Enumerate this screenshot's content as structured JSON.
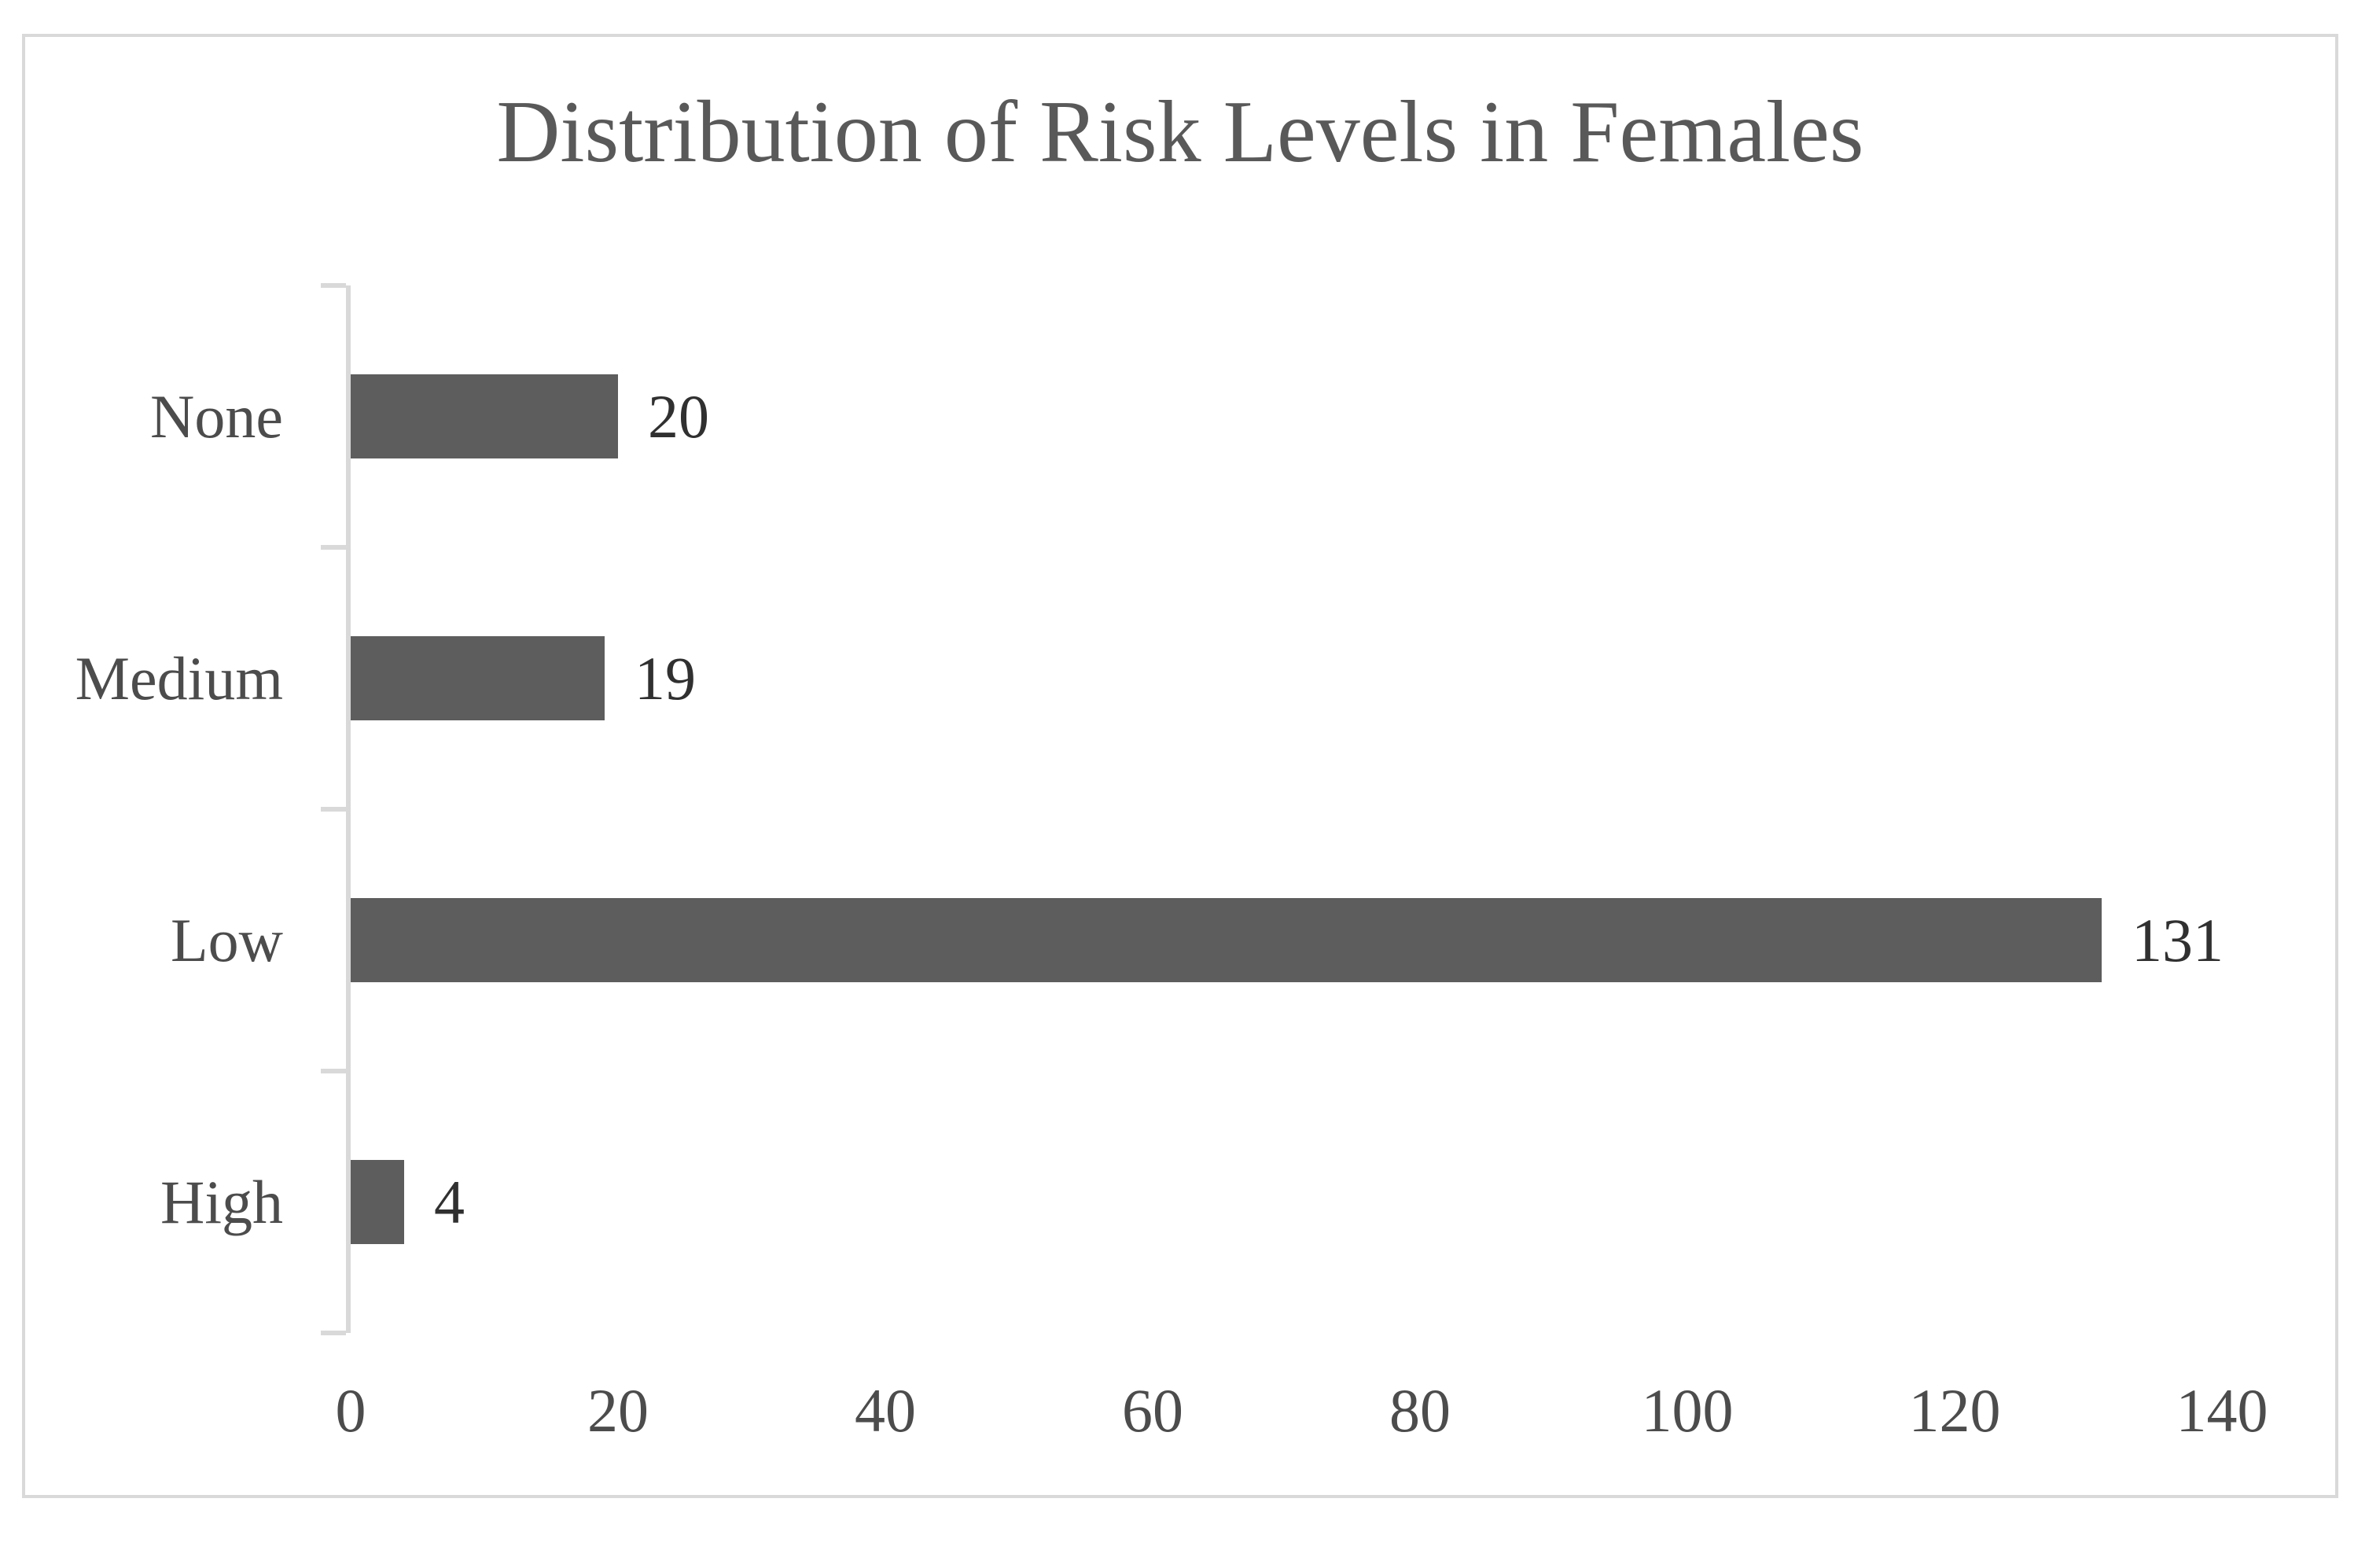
{
  "chart_data": {
    "type": "bar",
    "orientation": "horizontal",
    "title": "Distribution of Risk Levels in Females",
    "categories": [
      "None",
      "Medium",
      "Low",
      "High"
    ],
    "values": [
      20,
      19,
      131,
      4
    ],
    "data_labels": [
      20,
      19,
      131,
      4
    ],
    "xlabel": "",
    "ylabel": "",
    "xlim": [
      0,
      140
    ],
    "xticks": [
      0,
      20,
      40,
      60,
      80,
      100,
      120,
      140
    ],
    "grid": false,
    "legend": false,
    "bar_color": "#5d5d5d",
    "axis_color": "#d9d9d9",
    "border_color": "#d9d9d9",
    "title_color": "#595959",
    "category_label_color": "#4c4c4c",
    "tick_label_color": "#4c4c4c",
    "value_label_color": "#303030"
  }
}
